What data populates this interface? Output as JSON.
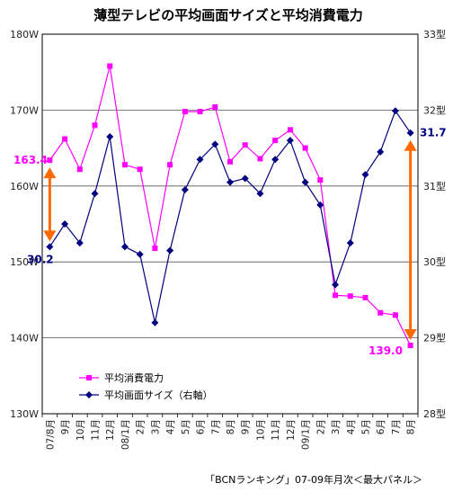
{
  "chart_data": {
    "type": "line",
    "title": "薄型テレビの平均画面サイズと平均消費電力",
    "source": "「BCNランキング」07-09年月次＜最大パネル＞",
    "categories": [
      "07/8月",
      "9月",
      "10月",
      "11月",
      "12月",
      "08/1月",
      "2月",
      "3月",
      "4月",
      "5月",
      "6月",
      "7月",
      "8月",
      "9月",
      "10月",
      "11月",
      "12月",
      "09/1月",
      "2月",
      "3月",
      "4月",
      "5月",
      "6月",
      "7月",
      "8月"
    ],
    "left_axis": {
      "ylim": [
        130,
        180
      ],
      "ticks": [
        "130W",
        "140W",
        "150W",
        "160W",
        "170W",
        "180W"
      ],
      "tick_values": [
        130,
        140,
        150,
        160,
        170,
        180
      ]
    },
    "right_axis": {
      "ylim": [
        28,
        33
      ],
      "ticks": [
        "28型",
        "29型",
        "30型",
        "31型",
        "32型",
        "33型"
      ],
      "tick_values": [
        28,
        29,
        30,
        31,
        32,
        33
      ]
    },
    "series": [
      {
        "name": "平均消費電力",
        "axis": "left",
        "color": "#ff00ff",
        "marker": "square",
        "values": [
          163.4,
          166.2,
          162.2,
          168.0,
          175.8,
          162.8,
          162.2,
          151.8,
          162.8,
          169.8,
          169.8,
          170.4,
          163.2,
          165.4,
          163.6,
          166.0,
          167.4,
          165.0,
          160.8,
          145.6,
          145.5,
          145.3,
          143.3,
          143.0,
          139.0
        ]
      },
      {
        "name": "平均画面サイズ（右軸）",
        "axis": "right",
        "color": "#000080",
        "marker": "diamond",
        "values": [
          30.2,
          30.5,
          30.25,
          30.9,
          31.65,
          30.2,
          30.1,
          29.2,
          30.15,
          30.95,
          31.35,
          31.55,
          31.05,
          31.1,
          30.9,
          31.35,
          31.6,
          31.05,
          30.75,
          29.7,
          30.25,
          31.15,
          31.45,
          31.99,
          31.7
        ]
      }
    ],
    "annotations": [
      {
        "text": "163.4",
        "color": "#ff00ff"
      },
      {
        "text": "30.2",
        "color": "#000080"
      },
      {
        "text": "31.7",
        "color": "#000080"
      },
      {
        "text": "139.0",
        "color": "#ff00ff"
      }
    ],
    "grid": "horizontal",
    "legend_position": "bottom-left"
  }
}
